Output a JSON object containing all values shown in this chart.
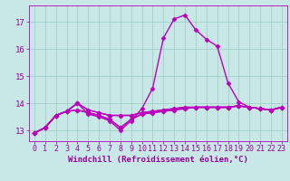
{
  "xlabel": "Windchill (Refroidissement éolien,°C)",
  "bg_color": "#c8e8e8",
  "grid_color": "#99ccbb",
  "line_color": "#bb00bb",
  "spine_color": "#bb00bb",
  "xlim": [
    -0.5,
    23.5
  ],
  "ylim": [
    12.6,
    17.6
  ],
  "yticks": [
    13,
    14,
    15,
    16,
    17
  ],
  "xticks": [
    0,
    1,
    2,
    3,
    4,
    5,
    6,
    7,
    8,
    9,
    10,
    11,
    12,
    13,
    14,
    15,
    16,
    17,
    18,
    19,
    20,
    21,
    22,
    23
  ],
  "lines": [
    [
      12.9,
      13.1,
      13.55,
      13.7,
      14.0,
      13.6,
      13.5,
      13.35,
      13.0,
      13.35,
      13.8,
      14.55,
      16.4,
      17.1,
      17.25,
      16.7,
      16.35,
      16.1,
      14.75,
      14.05,
      13.85,
      13.8,
      13.75,
      13.85
    ],
    [
      12.9,
      13.1,
      13.55,
      13.7,
      14.0,
      13.75,
      13.65,
      13.55,
      13.55,
      13.55,
      13.65,
      13.7,
      13.75,
      13.8,
      13.85,
      13.85,
      13.85,
      13.85,
      13.85,
      13.9,
      13.85,
      13.8,
      13.75,
      13.85
    ],
    [
      12.9,
      13.1,
      13.55,
      13.7,
      14.0,
      13.75,
      13.65,
      13.55,
      13.55,
      13.55,
      13.65,
      13.7,
      13.75,
      13.8,
      13.85,
      13.85,
      13.85,
      13.85,
      13.85,
      13.9,
      13.85,
      13.8,
      13.75,
      13.85
    ],
    [
      12.9,
      13.1,
      13.55,
      13.7,
      13.75,
      13.65,
      13.55,
      13.4,
      13.1,
      13.4,
      13.6,
      13.65,
      13.7,
      13.75,
      13.8,
      13.85,
      13.85,
      13.85,
      13.85,
      13.9,
      13.85,
      13.8,
      13.75,
      13.85
    ],
    [
      12.9,
      13.1,
      13.55,
      13.7,
      13.75,
      13.65,
      13.55,
      13.4,
      13.1,
      13.4,
      13.6,
      13.65,
      13.7,
      13.75,
      13.8,
      13.85,
      13.85,
      13.85,
      13.85,
      13.9,
      13.85,
      13.8,
      13.75,
      13.85
    ]
  ],
  "marker": "D",
  "markersize": 2.5,
  "linewidth": 1.0,
  "font_color": "#990099",
  "tick_fontsize": 6,
  "label_fontsize": 6.5
}
